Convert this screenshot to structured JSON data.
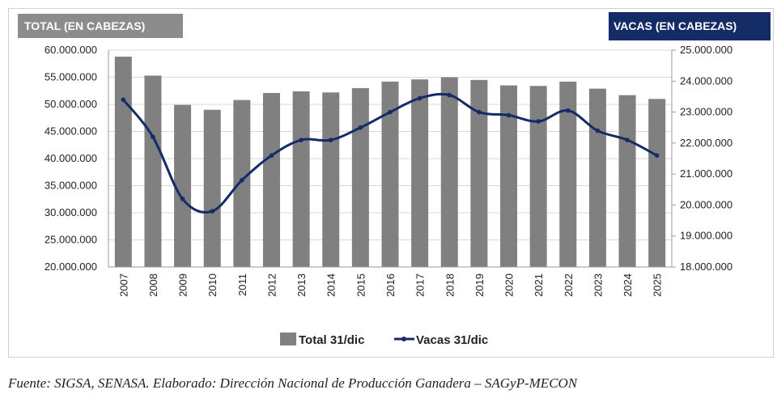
{
  "header": {
    "left_title": "TOTAL (EN CABEZAS)",
    "right_title": "VACAS (EN CABEZAS)"
  },
  "footer": {
    "source": "Fuente: SIGSA, SENASA. Elaborado: Dirección Nacional de Producción Ganadera – SAGyP-MECON"
  },
  "chart_data": {
    "type": "bar",
    "categories": [
      "2007",
      "2008",
      "2009",
      "2010",
      "2011",
      "2012",
      "2013",
      "2014",
      "2015",
      "2016",
      "2017",
      "2018",
      "2019",
      "2020",
      "2021",
      "2022",
      "2023",
      "2024",
      "2025"
    ],
    "series": [
      {
        "name": "Total 31/dic",
        "type": "bar",
        "axis": "left",
        "color": "#808080",
        "values": [
          58800000,
          55300000,
          49900000,
          49000000,
          50800000,
          52100000,
          52400000,
          52200000,
          53000000,
          54200000,
          54600000,
          55000000,
          54500000,
          53500000,
          53400000,
          54200000,
          52900000,
          51700000,
          51000000
        ]
      },
      {
        "name": "Vacas 31/dic",
        "type": "line",
        "axis": "right",
        "color": "#142c66",
        "values": [
          23400000,
          22200000,
          20200000,
          19800000,
          20800000,
          21600000,
          22100000,
          22100000,
          22500000,
          23000000,
          23450000,
          23550000,
          23000000,
          22900000,
          22700000,
          23050000,
          22400000,
          22100000,
          21600000
        ]
      }
    ],
    "y_left": {
      "min": 20000000,
      "max": 60000000,
      "step": 5000000,
      "tick_labels": [
        "20.000.000",
        "25.000.000",
        "30.000.000",
        "35.000.000",
        "40.000.000",
        "45.000.000",
        "50.000.000",
        "55.000.000",
        "60.000.000"
      ]
    },
    "y_right": {
      "min": 18000000,
      "max": 25000000,
      "step": 1000000,
      "tick_labels": [
        "18.000.000",
        "19.000.000",
        "20.000.000",
        "21.000.000",
        "22.000.000",
        "23.000.000",
        "24.000.000",
        "25.000.000"
      ]
    },
    "grid": true,
    "legend_position": "bottom"
  }
}
